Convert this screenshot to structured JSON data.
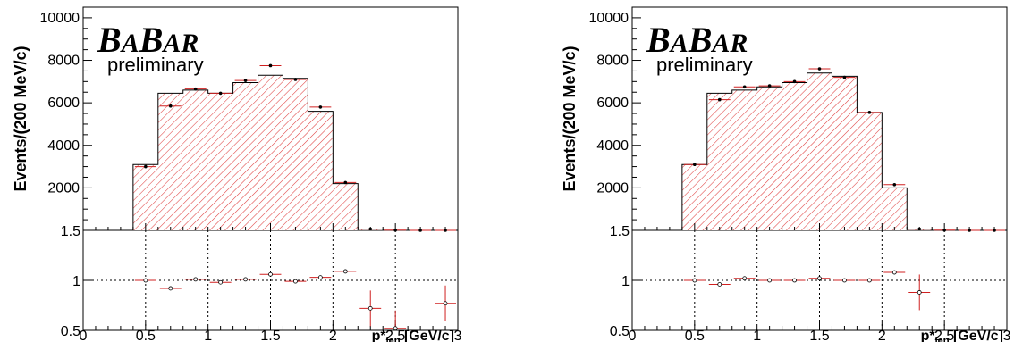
{
  "logo": {
    "text": "BABAR",
    "big": "B",
    "small": "A"
  },
  "preliminary": "preliminary",
  "chart_data": [
    {
      "type": "bar",
      "title": "",
      "ylabel": "Events/(200 MeV/c)",
      "xlabel_main": "p*",
      "xlabel_sub": "lep",
      "xlabel_unit": "[GeV/c]",
      "xlim": [
        0,
        3
      ],
      "ylim": [
        0,
        10500
      ],
      "yticks": [
        2000,
        4000,
        6000,
        8000,
        10000
      ],
      "xticks": [
        0,
        0.5,
        1,
        1.5,
        2,
        2.5,
        3
      ],
      "bin_edges": [
        0.4,
        0.6,
        0.8,
        1.0,
        1.2,
        1.4,
        1.6,
        1.8,
        2.0,
        2.2,
        2.4,
        2.6,
        2.8,
        3.0
      ],
      "histogram": [
        3100,
        6450,
        6600,
        6450,
        6950,
        7300,
        7150,
        5600,
        2200,
        50,
        0,
        0,
        0
      ],
      "data_points": [
        3000,
        5850,
        6650,
        6450,
        7050,
        7750,
        7100,
        5800,
        2250,
        60,
        10,
        0,
        0
      ],
      "ratio": {
        "ylim": [
          0.5,
          1.5
        ],
        "yticks": [
          0.5,
          1,
          1.5
        ],
        "values": [
          1.0,
          0.92,
          1.01,
          0.98,
          1.01,
          1.06,
          0.99,
          1.03,
          1.09,
          0.72,
          0.52,
          null,
          0.77
        ]
      }
    },
    {
      "type": "bar",
      "title": "",
      "ylabel": "Events/(200 MeV/c)",
      "xlabel_main": "p*",
      "xlabel_sub": "lep",
      "xlabel_unit": "[GeV/c]",
      "xlim": [
        0,
        3
      ],
      "ylim": [
        0,
        10500
      ],
      "yticks": [
        2000,
        4000,
        6000,
        8000,
        10000
      ],
      "xticks": [
        0,
        0.5,
        1,
        1.5,
        2,
        2.5,
        3
      ],
      "bin_edges": [
        0.4,
        0.6,
        0.8,
        1.0,
        1.2,
        1.4,
        1.6,
        1.8,
        2.0,
        2.2,
        2.4,
        2.6,
        2.8,
        3.0
      ],
      "histogram": [
        3100,
        6450,
        6600,
        6750,
        6950,
        7400,
        7250,
        5550,
        2000,
        50,
        0,
        0,
        0
      ],
      "data_points": [
        3100,
        6150,
        6750,
        6800,
        7000,
        7600,
        7200,
        5550,
        2150,
        60,
        10,
        0,
        0
      ],
      "ratio": {
        "ylim": [
          0.5,
          1.5
        ],
        "yticks": [
          0.5,
          1,
          1.5
        ],
        "values": [
          1.0,
          0.96,
          1.02,
          1.0,
          1.0,
          1.02,
          1.0,
          1.0,
          1.08,
          0.88,
          null,
          null,
          null
        ]
      }
    }
  ]
}
